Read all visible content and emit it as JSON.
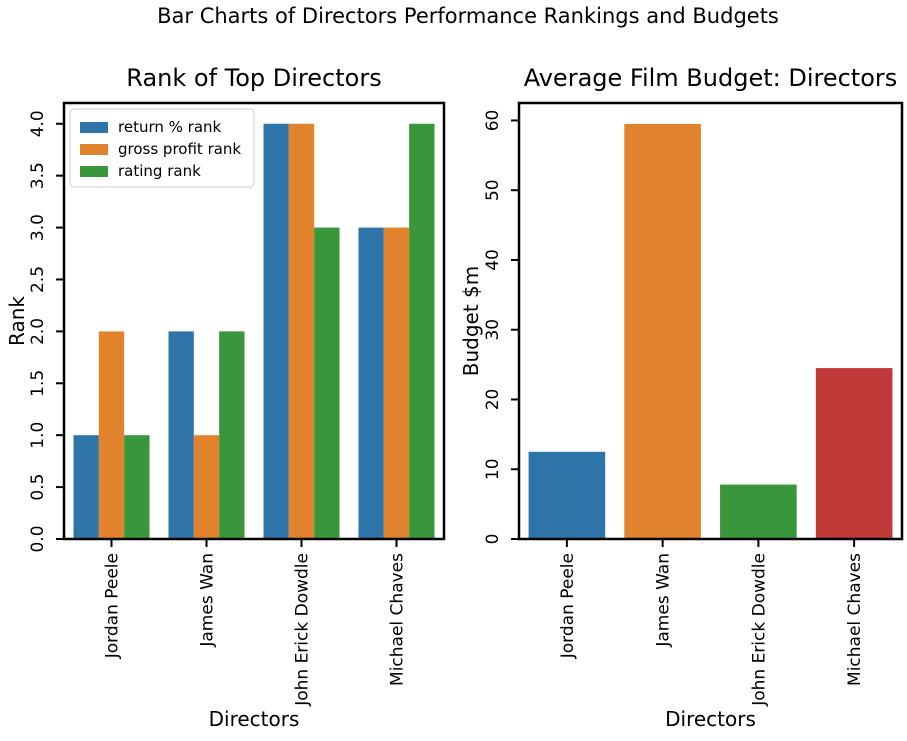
{
  "figure": {
    "suptitle": "Bar Charts of Directors Performance Rankings and Budgets"
  },
  "colors": {
    "blue": "#2f74a8",
    "orange": "#e0832c",
    "green": "#3a963a",
    "red": "#c13a3a"
  },
  "chart_data": [
    {
      "type": "bar",
      "title": "Rank of Top Directors",
      "xlabel": "Directors",
      "ylabel": "Rank",
      "categories": [
        "Jordan Peele",
        "James Wan",
        "John Erick Dowdle",
        "Michael Chaves"
      ],
      "series": [
        {
          "name": "return % rank",
          "color": "#2f74a8",
          "values": [
            1.0,
            2.0,
            4.0,
            3.0
          ]
        },
        {
          "name": "gross profit rank",
          "color": "#e0832c",
          "values": [
            2.0,
            1.0,
            4.0,
            3.0
          ]
        },
        {
          "name": "rating rank",
          "color": "#3a963a",
          "values": [
            1.0,
            2.0,
            3.0,
            4.0
          ]
        }
      ],
      "ylim": [
        0,
        4.2
      ],
      "yticks": [
        "0.0",
        "0.5",
        "1.0",
        "1.5",
        "2.0",
        "2.5",
        "3.0",
        "3.5",
        "4.0"
      ],
      "ytick_values": [
        0,
        0.5,
        1.0,
        1.5,
        2.0,
        2.5,
        3.0,
        3.5,
        4.0
      ],
      "legend": "top-left",
      "grid": false
    },
    {
      "type": "bar",
      "title": "Average Film Budget: Directors",
      "xlabel": "Directors",
      "ylabel": "Budget $m",
      "categories": [
        "Jordan Peele",
        "James Wan",
        "John Erick Dowdle",
        "Michael Chaves"
      ],
      "values": [
        12.5,
        59.5,
        7.8,
        24.5
      ],
      "colors": [
        "#2f74a8",
        "#e0832c",
        "#3a963a",
        "#c13a3a"
      ],
      "ylim": [
        0,
        62.5
      ],
      "yticks": [
        "0",
        "10",
        "20",
        "30",
        "40",
        "50",
        "60"
      ],
      "ytick_values": [
        0,
        10,
        20,
        30,
        40,
        50,
        60
      ],
      "grid": false
    }
  ]
}
